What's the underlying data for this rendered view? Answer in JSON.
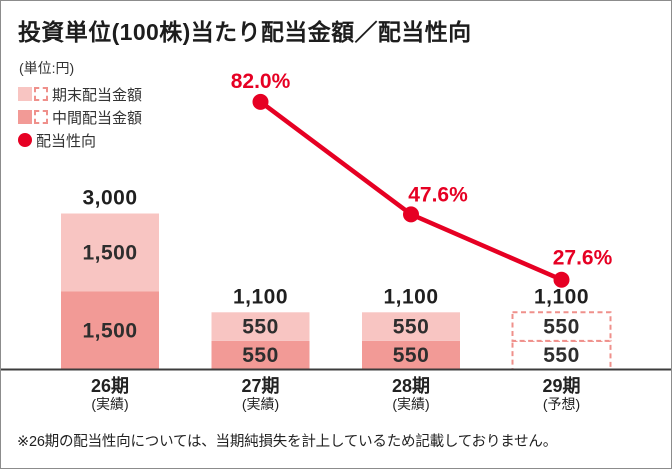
{
  "header": {
    "title": "投資単位(100株)当たり配当金額／配当性向",
    "unit_label": "(単位:円)"
  },
  "legend": {
    "items": [
      {
        "label": "期末配当金額",
        "swatch": "light-pink-solid-plus-dashed"
      },
      {
        "label": "中間配当金額",
        "swatch": "dark-pink-solid-plus-dashed"
      },
      {
        "label": "配当性向",
        "swatch": "red-dot"
      }
    ]
  },
  "colors": {
    "year_end": "#f8c5c2",
    "interim": "#f29a96",
    "payout": "#e60023",
    "forecast_dash": "#ef908b",
    "axis": "#3c3c3c"
  },
  "chart_data": {
    "type": "combo-stacked-bar-line",
    "title": "投資単位(100株)当たり配当金額／配当性向",
    "unit": "円",
    "categories": [
      {
        "label": "26期",
        "sub": "(実績)"
      },
      {
        "label": "27期",
        "sub": "(実績)"
      },
      {
        "label": "28期",
        "sub": "(実績)"
      },
      {
        "label": "29期",
        "sub": "(予想)"
      }
    ],
    "series": [
      {
        "name": "中間配当金額",
        "values": [
          1500,
          550,
          550,
          550
        ]
      },
      {
        "name": "期末配当金額",
        "values": [
          1500,
          550,
          550,
          550
        ]
      }
    ],
    "totals": [
      3000,
      1100,
      1100,
      1100
    ],
    "line": {
      "name": "配当性向",
      "values": [
        null,
        82.0,
        47.6,
        27.6
      ],
      "labels": [
        null,
        "82.0%",
        "47.6%",
        "27.6%"
      ]
    },
    "forecast_index": 3,
    "ylim_yen": [
      0,
      3000
    ],
    "ylim_pct": [
      0,
      100
    ],
    "grid": false,
    "legend_position": "top-left"
  },
  "footnote": "※26期の配当性向については、当期純損失を計上しているため記載しておりません。"
}
